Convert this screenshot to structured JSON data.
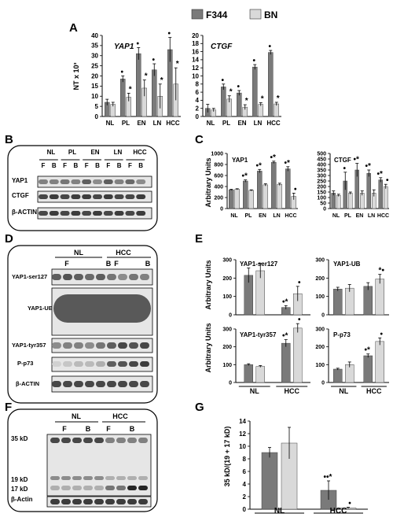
{
  "panel_letters": [
    "A",
    "B",
    "C",
    "D",
    "E",
    "F",
    "G"
  ],
  "legend": {
    "dark": {
      "label": "F344",
      "color": "#7a7a7a"
    },
    "light": {
      "label": "BN",
      "color": "#d9d9d9"
    }
  },
  "significance": {
    "dot": "•",
    "star": "*"
  },
  "blots": {
    "B": {
      "groups": [
        "NL",
        "PL",
        "EN",
        "LN",
        "HCC"
      ],
      "lanes": [
        "F",
        "B"
      ],
      "rows": [
        "YAP1",
        "CTGF",
        "β-ACTIN"
      ]
    },
    "D": {
      "groups": [
        "NL",
        "HCC"
      ],
      "lanes": [
        "F",
        "B"
      ],
      "rows": [
        "YAP1-ser127",
        "YAP1-UB",
        "YAP1-tyr357",
        "P-p73",
        "β-ACTIN"
      ]
    },
    "F": {
      "groups": [
        "NL",
        "HCC"
      ],
      "lanes": [
        "F",
        "B"
      ],
      "markers": [
        "35 kD",
        "19 kD",
        "17 kD"
      ],
      "rows": [
        "β-Actin"
      ]
    }
  },
  "chart_data": [
    {
      "panel": "A",
      "type": "bar",
      "title": "YAP1",
      "ylabel": "NT x 10³",
      "categories": [
        "NL",
        "PL",
        "EN",
        "LN",
        "HCC"
      ],
      "ylim": [
        0,
        40
      ],
      "yticks": [
        "0",
        "5",
        "10",
        "15",
        "20",
        "25",
        "30",
        "35",
        "40"
      ],
      "series": [
        {
          "name": "F344",
          "values": [
            7,
            18.5,
            31,
            23,
            33
          ],
          "err": [
            1.5,
            1.5,
            3,
            3,
            6
          ],
          "marks": [
            "",
            "•",
            "•",
            "•",
            "•"
          ]
        },
        {
          "name": "BN",
          "values": [
            6,
            9.5,
            14,
            10,
            16
          ],
          "err": [
            1,
            2,
            4,
            6,
            8
          ],
          "marks": [
            "",
            "*",
            "*",
            "*",
            "*"
          ]
        }
      ]
    },
    {
      "panel": "A",
      "type": "bar",
      "title": "CTGF",
      "categories": [
        "NL",
        "PL",
        "EN",
        "LN",
        "HCC"
      ],
      "ylim": [
        0,
        20
      ],
      "yticks": [
        "0",
        "2",
        "4",
        "6",
        "8",
        "10",
        "12",
        "14",
        "16",
        "18",
        "20"
      ],
      "series": [
        {
          "name": "F344",
          "values": [
            2,
            7.3,
            5.8,
            12.2,
            15.8
          ],
          "err": [
            1,
            0.7,
            0.6,
            0.6,
            0.5
          ],
          "marks": [
            "",
            "•",
            "•",
            "•",
            "•"
          ]
        },
        {
          "name": "BN",
          "values": [
            1.6,
            4.3,
            2.3,
            3,
            3.1
          ],
          "err": [
            0.4,
            0.8,
            0.6,
            0.4,
            0.4
          ],
          "marks": [
            "",
            "*",
            "*",
            "*",
            "*"
          ]
        }
      ]
    },
    {
      "panel": "C",
      "type": "bar",
      "title": "YAP1",
      "ylabel": "Arbitrary Units",
      "categories": [
        "NL",
        "PL",
        "EN",
        "LN",
        "HCC"
      ],
      "ylim": [
        0,
        1000
      ],
      "yticks": [
        "0",
        "200",
        "400",
        "600",
        "800",
        "1000"
      ],
      "series": [
        {
          "values": [
            340,
            500,
            680,
            840,
            720
          ],
          "err": [
            10,
            20,
            30,
            20,
            40
          ],
          "marks": [
            "",
            "•*",
            "•*",
            "•*",
            "•*"
          ]
        },
        {
          "values": [
            350,
            330,
            430,
            440,
            220
          ],
          "err": [
            10,
            10,
            20,
            20,
            60
          ],
          "marks": [
            "",
            "",
            "",
            "",
            "•"
          ]
        }
      ]
    },
    {
      "panel": "C",
      "type": "bar",
      "title": "CTGF",
      "categories": [
        "NL",
        "PL",
        "EN",
        "LN",
        "HCC"
      ],
      "ylim": [
        0,
        500
      ],
      "yticks": [
        "0",
        "50",
        "100",
        "150",
        "200",
        "250",
        "300",
        "350",
        "400",
        "450",
        "500"
      ],
      "series": [
        {
          "values": [
            140,
            250,
            350,
            320,
            260
          ],
          "err": [
            20,
            80,
            60,
            30,
            20
          ],
          "marks": [
            "",
            "•",
            "•*",
            "•*",
            "•*"
          ]
        },
        {
          "values": [
            120,
            140,
            140,
            140,
            200
          ],
          "err": [
            10,
            10,
            20,
            30,
            20
          ],
          "marks": [
            "",
            "",
            "",
            "",
            "•"
          ]
        }
      ]
    },
    {
      "panel": "E",
      "type": "bar",
      "title": "YAP1-ser127",
      "ylabel": "Arbitrary Units",
      "categories": [
        "NL",
        "HCC"
      ],
      "ylim": [
        0,
        300
      ],
      "yticks": [
        "0",
        "100",
        "200",
        "300"
      ],
      "series": [
        {
          "values": [
            215,
            40
          ],
          "err": [
            40,
            10
          ],
          "marks": [
            "",
            "•*"
          ]
        },
        {
          "values": [
            240,
            115
          ],
          "err": [
            40,
            40
          ],
          "marks": [
            "",
            "•"
          ]
        }
      ]
    },
    {
      "panel": "E",
      "type": "bar",
      "title": "YAP1-UB",
      "categories": [
        "NL",
        "HCC"
      ],
      "ylim": [
        0,
        300
      ],
      "yticks": [
        "0",
        "100",
        "200",
        "300"
      ],
      "series": [
        {
          "values": [
            140,
            155
          ],
          "err": [
            10,
            20
          ],
          "marks": [
            "",
            ""
          ]
        },
        {
          "values": [
            145,
            195
          ],
          "err": [
            20,
            25
          ],
          "marks": [
            "",
            "*•"
          ]
        }
      ]
    },
    {
      "panel": "E",
      "type": "bar",
      "title": "YAP1-tyr357",
      "ylabel": "Arbitrary Units",
      "categories": [
        "NL",
        "HCC"
      ],
      "ylim": [
        0,
        300
      ],
      "yticks": [
        "0",
        "100",
        "200",
        "300"
      ],
      "series": [
        {
          "values": [
            100,
            220
          ],
          "err": [
            5,
            20
          ],
          "marks": [
            "",
            "•*"
          ]
        },
        {
          "values": [
            90,
            305
          ],
          "err": [
            5,
            25
          ],
          "marks": [
            "",
            "•"
          ]
        }
      ]
    },
    {
      "panel": "E",
      "type": "bar",
      "title": "P-p73",
      "categories": [
        "NL",
        "HCC"
      ],
      "ylim": [
        0,
        300
      ],
      "yticks": [
        "0",
        "100",
        "200",
        "300"
      ],
      "series": [
        {
          "values": [
            75,
            150
          ],
          "err": [
            5,
            10
          ],
          "marks": [
            "",
            "•*"
          ]
        },
        {
          "values": [
            100,
            230
          ],
          "err": [
            15,
            20
          ],
          "marks": [
            "",
            "•"
          ]
        }
      ]
    },
    {
      "panel": "G",
      "type": "bar",
      "ylabel": "35 kD/(19 + 17 kD)",
      "categories": [
        "NL",
        "HCC"
      ],
      "ylim": [
        0,
        14
      ],
      "yticks": [
        "0",
        "2",
        "4",
        "6",
        "8",
        "10",
        "12",
        "14"
      ],
      "series": [
        {
          "values": [
            9,
            3
          ],
          "err": [
            0.8,
            1.5
          ],
          "marks": [
            "",
            "••*"
          ]
        },
        {
          "values": [
            10.5,
            0.2
          ],
          "err": [
            2.5,
            0.1
          ],
          "marks": [
            "",
            "•"
          ]
        }
      ]
    }
  ]
}
